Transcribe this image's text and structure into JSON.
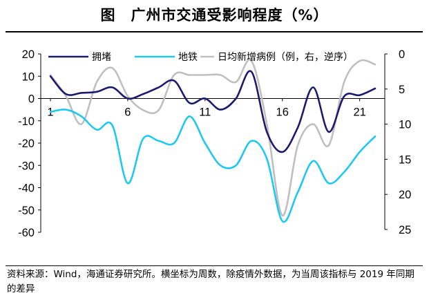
{
  "title": "图　广州市交通受影响程度（%）",
  "footnote": "资料来源：Wind，海通证券研究所。横坐标为周数，除疫情外数据，为当周该指标与 2019 年同期的差异",
  "chart_data": {
    "type": "line",
    "x": [
      1,
      2,
      3,
      4,
      5,
      6,
      7,
      8,
      9,
      10,
      11,
      12,
      13,
      14,
      15,
      16,
      17,
      18,
      19,
      20,
      21,
      22
    ],
    "x_tick_labels": [
      "1",
      "6",
      "11",
      "16",
      "21"
    ],
    "x_tick_values": [
      1,
      6,
      11,
      16,
      21
    ],
    "left_axis": {
      "ylim": [
        -60,
        20
      ],
      "ticks": [
        20,
        10,
        0,
        -10,
        -20,
        -30,
        -40,
        -50,
        -60
      ]
    },
    "right_axis": {
      "ylim": [
        0,
        25
      ],
      "inverted": true,
      "ticks": [
        0,
        5,
        10,
        15,
        20,
        25
      ]
    },
    "grid": false,
    "legend_position": "top",
    "series": [
      {
        "name": "拥堵",
        "axis": "left",
        "color": "#1a1a6e",
        "values": [
          10,
          2,
          2.5,
          3,
          5,
          0,
          2,
          5,
          8,
          -2,
          0,
          -5,
          0,
          12,
          -15,
          -24,
          -13,
          5,
          -15,
          1,
          1.5,
          4.5
        ]
      },
      {
        "name": "地铁",
        "axis": "left",
        "color": "#1ec8f0",
        "values": [
          -6,
          -5,
          -8,
          -14,
          -12,
          -38,
          -18,
          -19,
          -20,
          -8,
          -20,
          -30,
          -30,
          -19,
          -27,
          -55,
          -42,
          -28,
          -38,
          -33,
          -24,
          -17
        ]
      },
      {
        "name": "日均新增病例（例，右，逆序）",
        "axis": "right",
        "color": "#bfbfbf",
        "values": [
          3,
          6,
          10,
          4,
          2,
          6,
          8,
          8,
          3,
          3,
          3,
          3,
          4,
          1,
          10,
          23,
          13,
          10,
          13,
          4,
          1,
          1.5
        ]
      }
    ]
  }
}
